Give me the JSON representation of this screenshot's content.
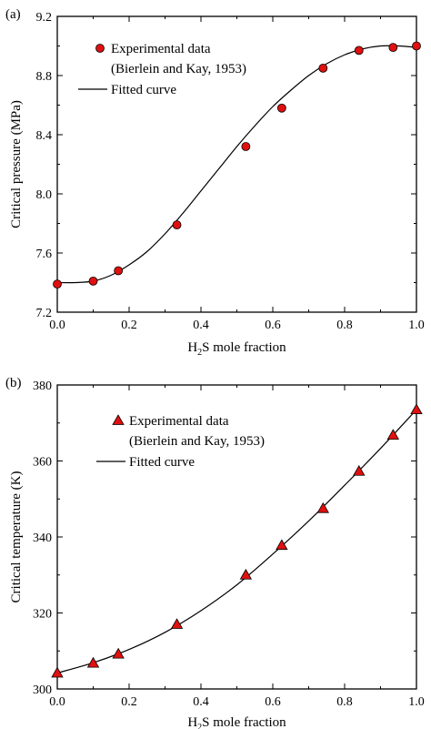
{
  "colors": {
    "marker": "#e01010",
    "curve": "#000000",
    "axis": "#000000"
  },
  "chart_data": [
    {
      "type": "scatter",
      "panel_label": "(a)",
      "xlabel_parts": [
        "H",
        "2",
        "S mole fraction"
      ],
      "ylabel": "Critical pressure (MPa)",
      "xlim": [
        0.0,
        1.0
      ],
      "ylim": [
        7.2,
        9.2
      ],
      "xticks": [
        "0.0",
        "0.2",
        "0.4",
        "0.6",
        "0.8",
        "1.0"
      ],
      "xtick_values": [
        0.0,
        0.2,
        0.4,
        0.6,
        0.8,
        1.0
      ],
      "yticks": [
        "7.2",
        "7.6",
        "8.0",
        "8.4",
        "8.8",
        "9.2"
      ],
      "ytick_values": [
        7.2,
        7.6,
        8.0,
        8.4,
        8.8,
        9.2
      ],
      "grid": false,
      "legend_position": "top-left",
      "marker": "circle",
      "series": [
        {
          "name": "Experimental data",
          "name_line2": "(Bierlein and Kay, 1953)",
          "kind": "points",
          "x": [
            0.0,
            0.1,
            0.17,
            0.333,
            0.525,
            0.625,
            0.74,
            0.84,
            0.935,
            1.0
          ],
          "y": [
            7.39,
            7.41,
            7.48,
            7.79,
            8.32,
            8.58,
            8.85,
            8.97,
            8.99,
            9.0
          ]
        },
        {
          "name": "Fitted curve",
          "kind": "line",
          "x": [
            0.0,
            0.05,
            0.1,
            0.15,
            0.2,
            0.25,
            0.3,
            0.35,
            0.4,
            0.45,
            0.5,
            0.55,
            0.6,
            0.65,
            0.7,
            0.75,
            0.8,
            0.85,
            0.9,
            0.95,
            1.0
          ],
          "y": [
            7.4,
            7.4,
            7.41,
            7.45,
            7.52,
            7.61,
            7.73,
            7.87,
            8.02,
            8.17,
            8.32,
            8.46,
            8.59,
            8.7,
            8.8,
            8.88,
            8.94,
            8.98,
            9.0,
            9.0,
            8.99
          ]
        }
      ]
    },
    {
      "type": "scatter",
      "panel_label": "(b)",
      "xlabel_parts": [
        "H",
        "2",
        "S mole fraction"
      ],
      "ylabel": "Critical temperature (K)",
      "xlim": [
        0.0,
        1.0
      ],
      "ylim": [
        300,
        380
      ],
      "xticks": [
        "0.0",
        "0.2",
        "0.4",
        "0.6",
        "0.8",
        "1.0"
      ],
      "xtick_values": [
        0.0,
        0.2,
        0.4,
        0.6,
        0.8,
        1.0
      ],
      "yticks": [
        "300",
        "320",
        "340",
        "360",
        "380"
      ],
      "ytick_values": [
        300,
        320,
        340,
        360,
        380
      ],
      "grid": false,
      "legend_position": "top-left",
      "marker": "triangle",
      "series": [
        {
          "name": "Experimental data",
          "name_line2": "(Bierlein and Kay, 1953)",
          "kind": "points",
          "x": [
            0.0,
            0.1,
            0.17,
            0.333,
            0.525,
            0.625,
            0.74,
            0.84,
            0.935,
            1.0
          ],
          "y": [
            304.2,
            306.8,
            309.2,
            317.0,
            330.0,
            337.8,
            347.5,
            357.3,
            366.8,
            373.5
          ]
        },
        {
          "name": "Fitted curve",
          "kind": "line",
          "x": [
            0.0,
            0.1,
            0.2,
            0.3,
            0.4,
            0.5,
            0.6,
            0.7,
            0.8,
            0.9,
            1.0
          ],
          "y": [
            304.2,
            306.9,
            310.4,
            314.9,
            320.6,
            327.4,
            335.5,
            344.2,
            353.6,
            363.3,
            373.5
          ]
        }
      ]
    }
  ]
}
